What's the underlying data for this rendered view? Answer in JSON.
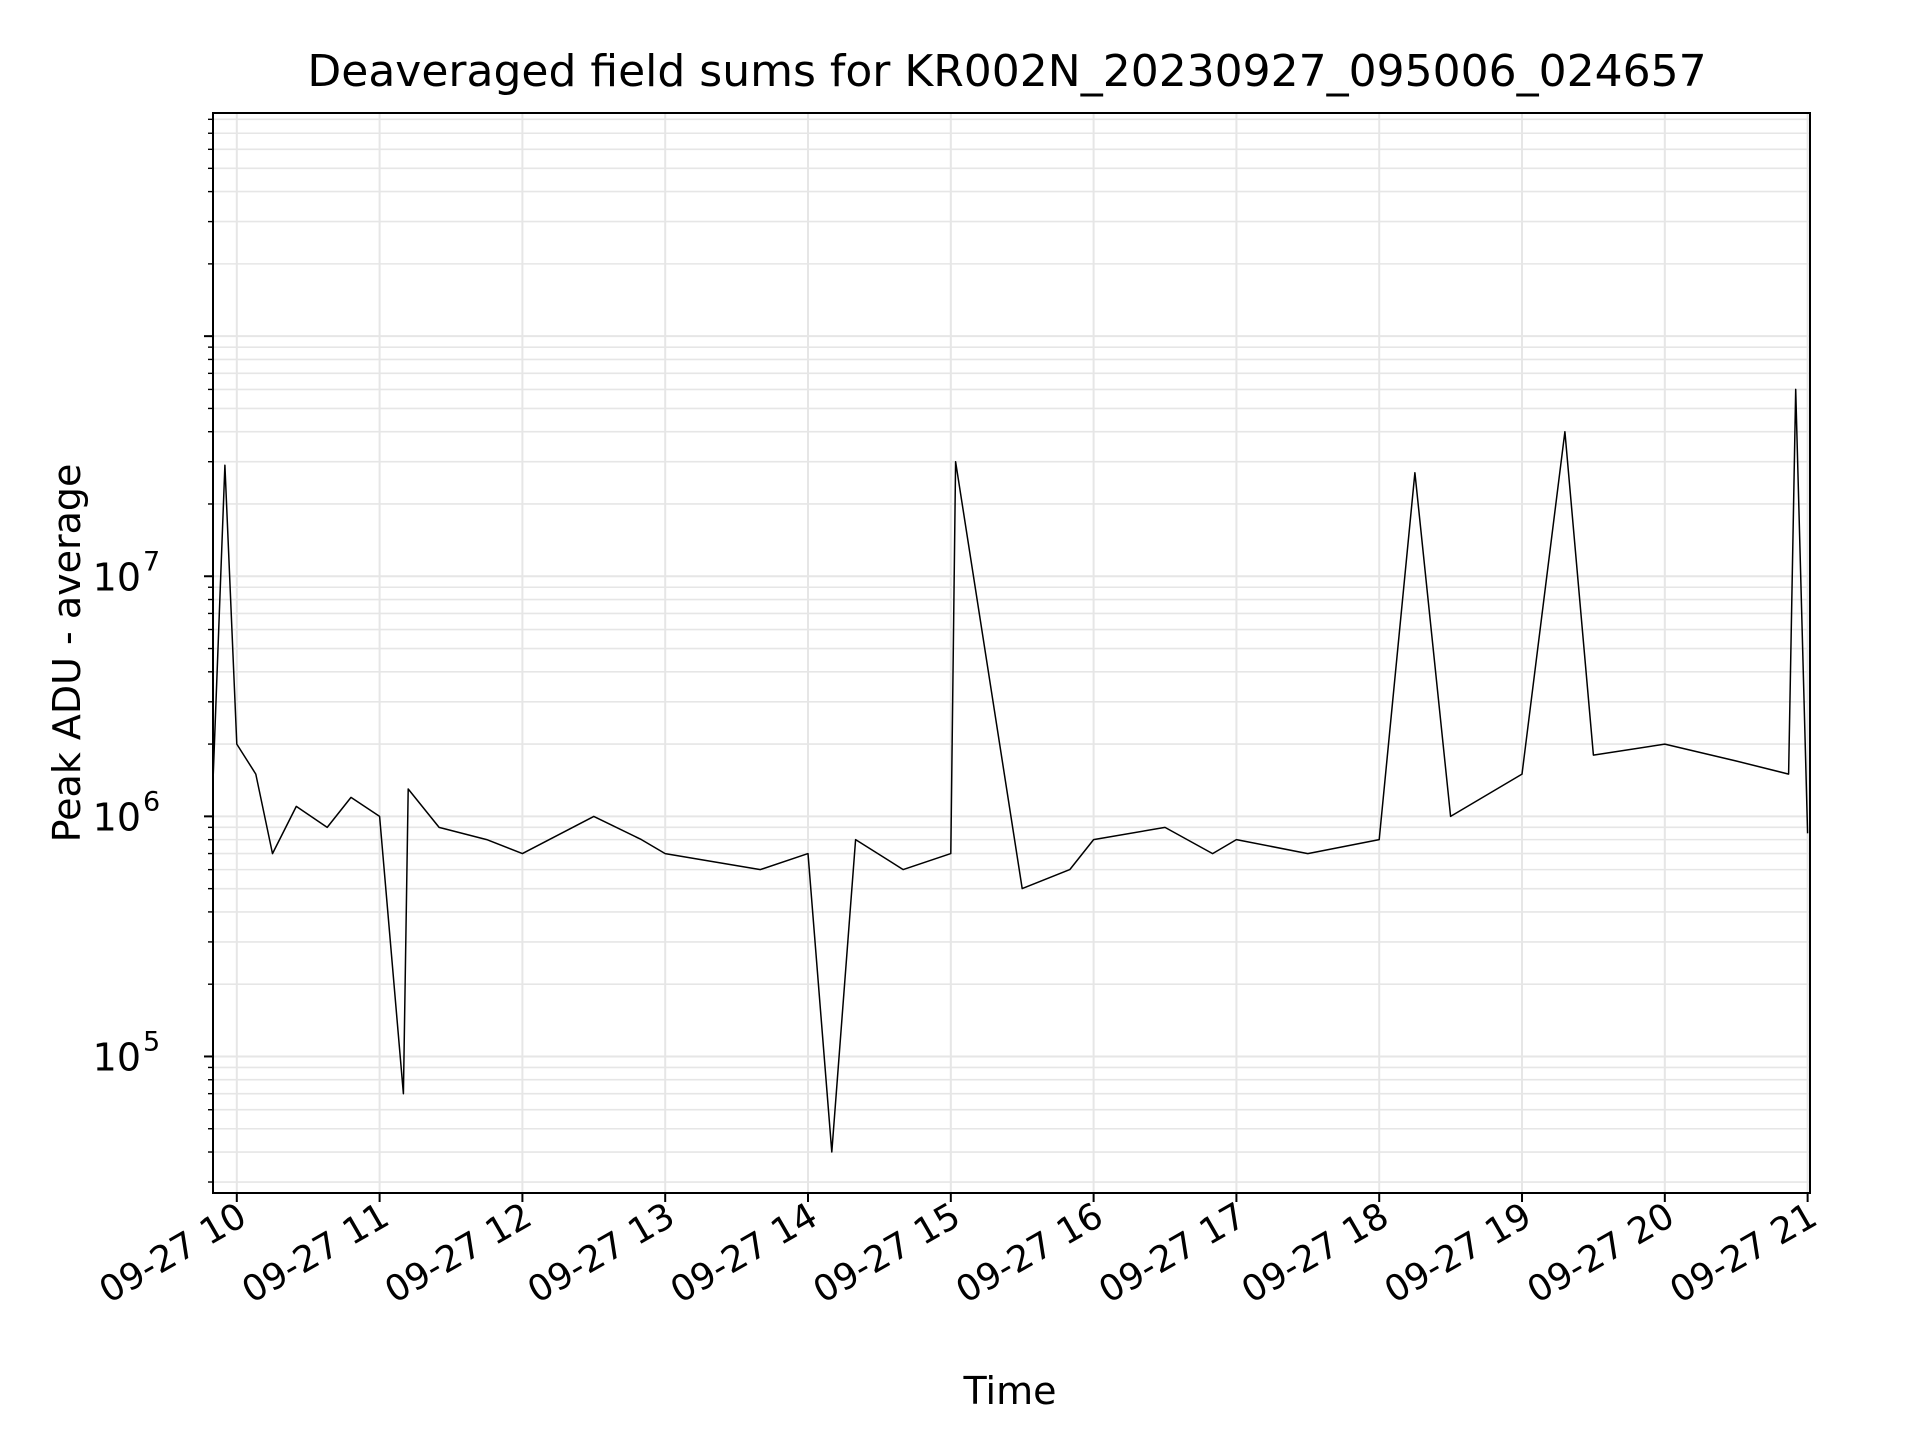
{
  "chart_data": {
    "type": "line",
    "title": "Deaveraged field sums for KR002N_20230927_095006_024657",
    "xlabel": "Time",
    "ylabel": "Peak ADU - average",
    "x_tick_labels": [
      "09-27 10",
      "09-27 11",
      "09-27 12",
      "09-27 13",
      "09-27 14",
      "09-27 15",
      "09-27 16",
      "09-27 17",
      "09-27 18",
      "09-27 19",
      "09-27 20",
      "09-27 21"
    ],
    "xlim": [
      "2023-09-27 09:50",
      "2023-09-27 21:01"
    ],
    "yscale": "log",
    "ylim": [
      27000,
      850000000
    ],
    "y_tick_labels": [
      {
        "base": "10",
        "exp": "5",
        "value": 100000
      },
      {
        "base": "10",
        "exp": "6",
        "value": 1000000
      },
      {
        "base": "10",
        "exp": "7",
        "value": 10000000
      }
    ],
    "grid": true,
    "line_color": "#000000",
    "series": [
      {
        "name": "",
        "x": [
          "2023-09-27 09:50",
          "2023-09-27 09:55",
          "2023-09-27 10:00",
          "2023-09-27 10:08",
          "2023-09-27 10:15",
          "2023-09-27 10:25",
          "2023-09-27 10:38",
          "2023-09-27 10:48",
          "2023-09-27 11:00",
          "2023-09-27 11:10",
          "2023-09-27 11:12",
          "2023-09-27 11:25",
          "2023-09-27 11:45",
          "2023-09-27 12:00",
          "2023-09-27 12:30",
          "2023-09-27 12:50",
          "2023-09-27 13:00",
          "2023-09-27 13:40",
          "2023-09-27 14:00",
          "2023-09-27 14:10",
          "2023-09-27 14:20",
          "2023-09-27 14:40",
          "2023-09-27 15:00",
          "2023-09-27 15:02",
          "2023-09-27 15:30",
          "2023-09-27 15:50",
          "2023-09-27 16:00",
          "2023-09-27 16:30",
          "2023-09-27 16:50",
          "2023-09-27 17:00",
          "2023-09-27 17:30",
          "2023-09-27 18:00",
          "2023-09-27 18:15",
          "2023-09-27 18:30",
          "2023-09-27 19:00",
          "2023-09-27 19:18",
          "2023-09-27 19:30",
          "2023-09-27 20:00",
          "2023-09-27 20:30",
          "2023-09-27 20:52",
          "2023-09-27 20:55",
          "2023-09-27 21:00"
        ],
        "y": [
          1400000,
          29000000,
          2000000,
          1500000,
          700000,
          1100000,
          900000,
          1200000,
          1000000,
          70000,
          1300000,
          900000,
          800000,
          700000,
          1000000,
          800000,
          700000,
          600000,
          700000,
          40000,
          800000,
          600000,
          700000,
          30000000,
          500000,
          600000,
          800000,
          900000,
          700000,
          800000,
          700000,
          800000,
          27000000,
          1000000,
          1500000,
          40000000,
          1800000,
          2000000,
          1700000,
          1500000,
          60000000,
          850000
        ]
      }
    ]
  }
}
